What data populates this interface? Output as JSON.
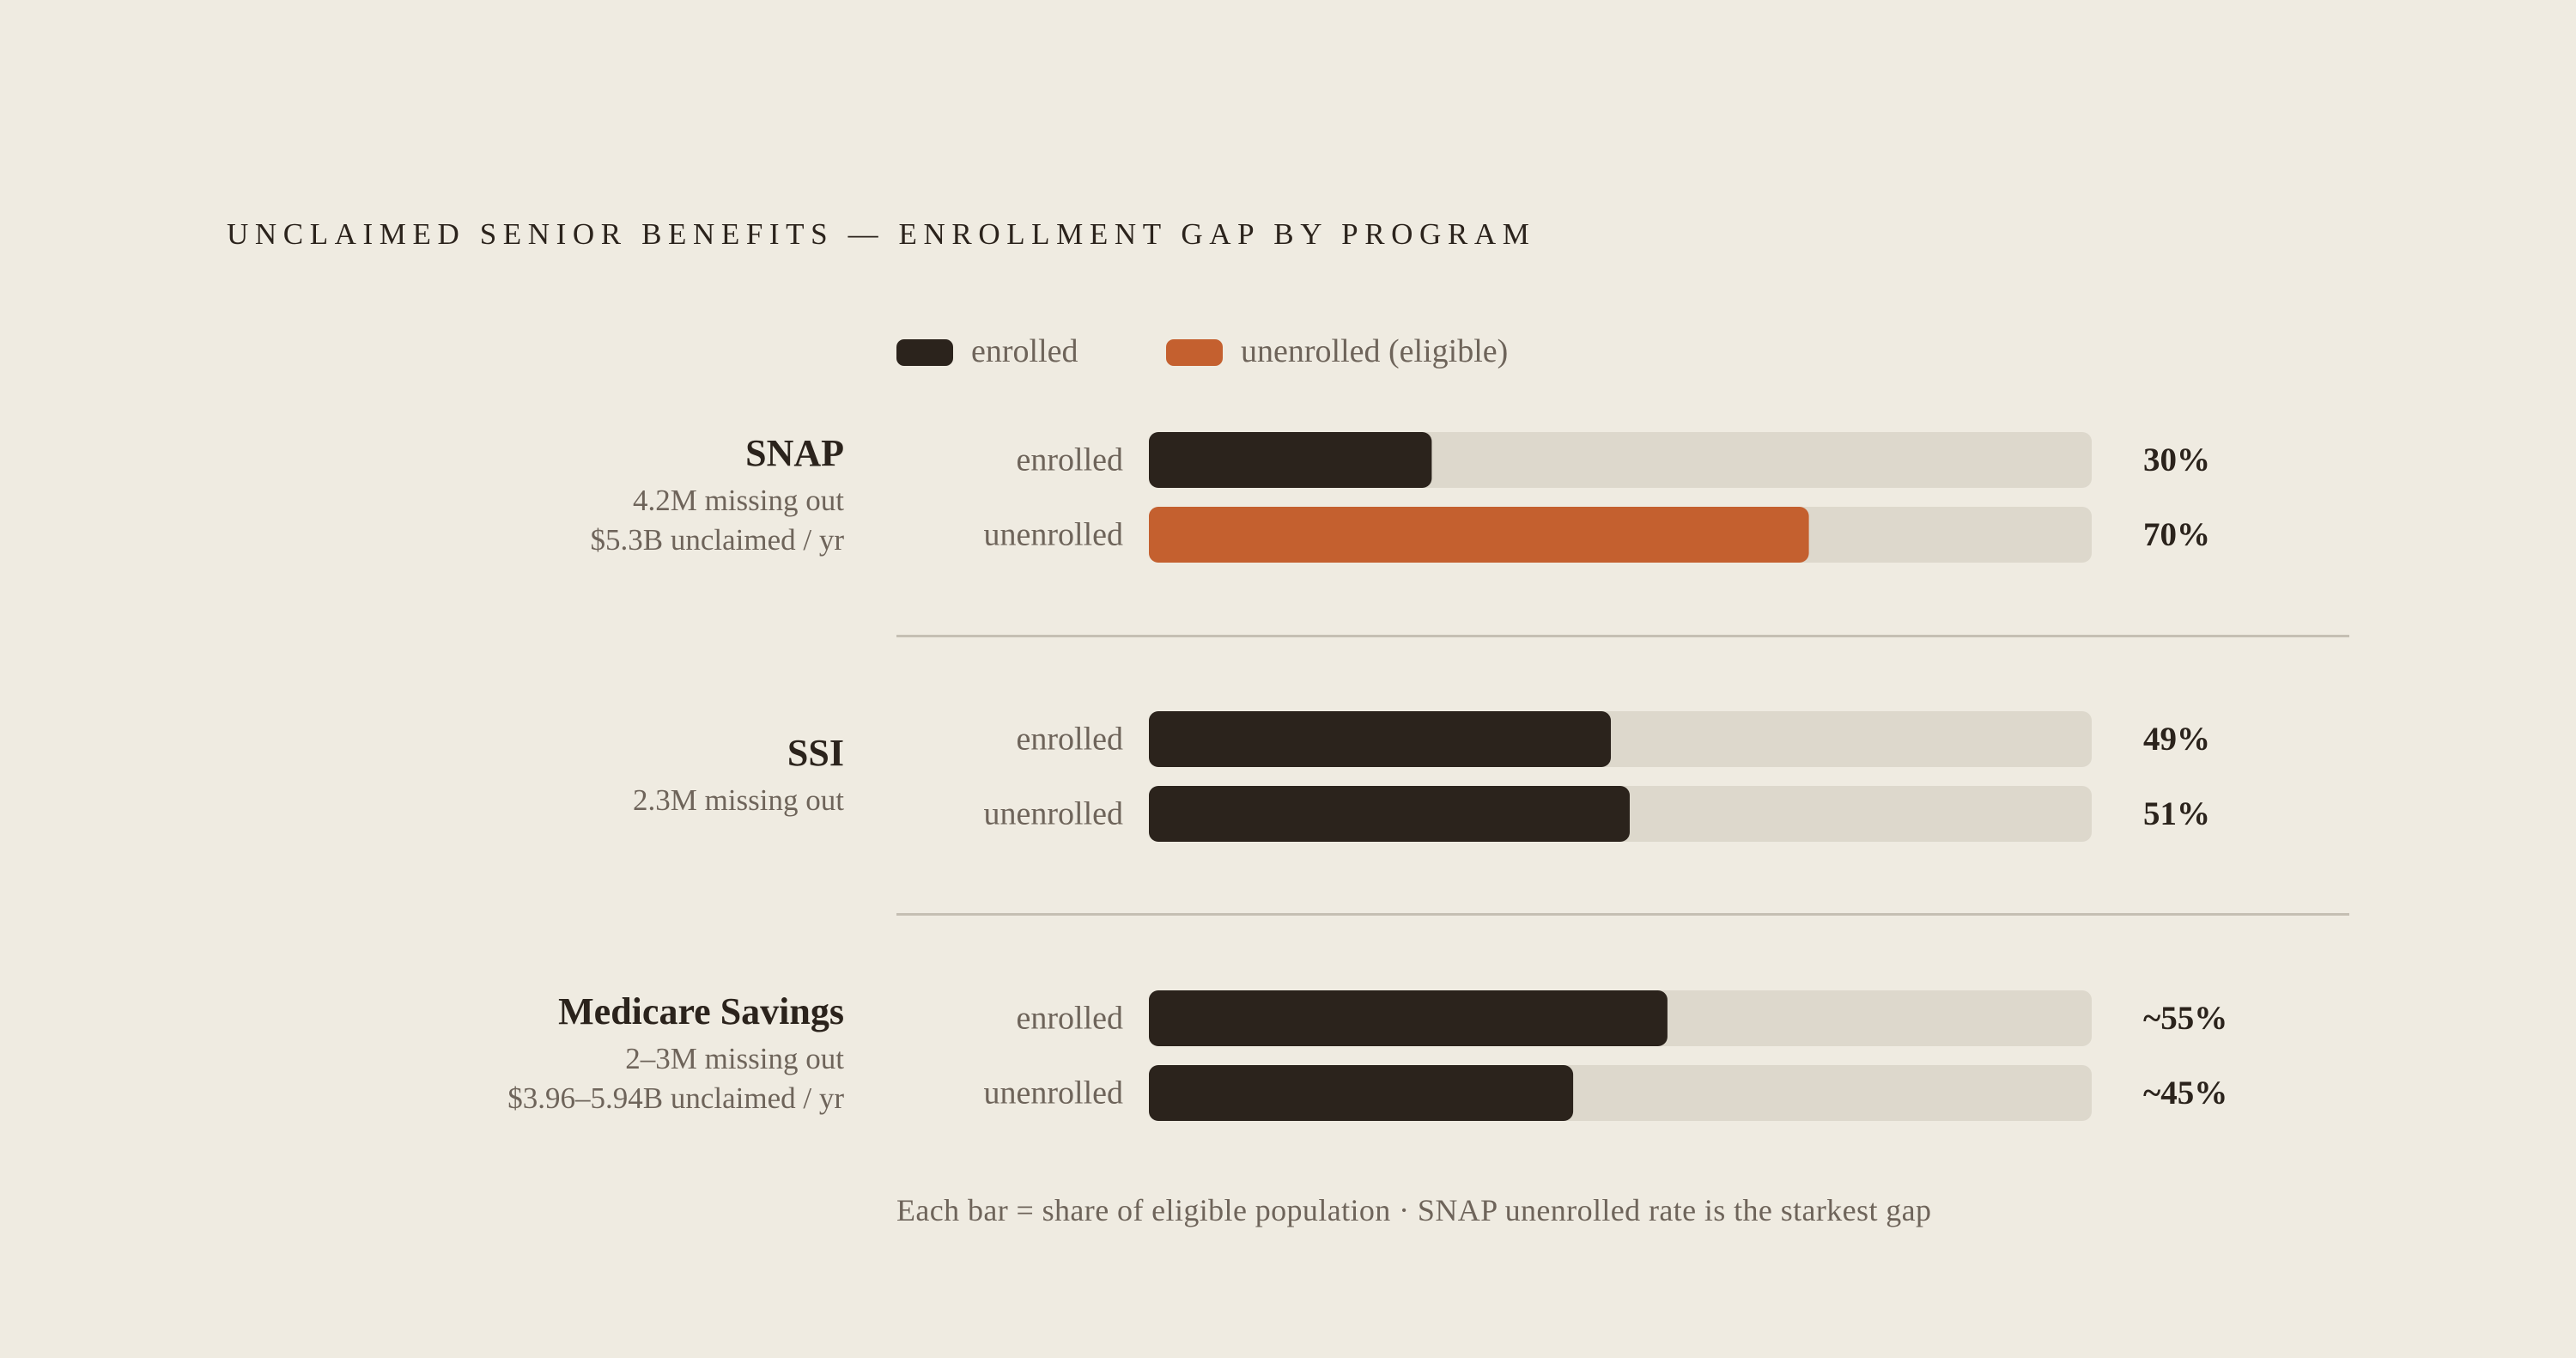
{
  "title": "UNCLAIMED SENIOR BENEFITS — ENROLLMENT GAP BY PROGRAM",
  "footnote": "Each bar = share of eligible population · SNAP unenrolled rate is the starkest gap",
  "legend": {
    "enrolled": {
      "label": "enrolled",
      "color": "#2b231c"
    },
    "unenrolled": {
      "label": "unenrolled (eligible)",
      "color": "#c4602f"
    }
  },
  "colors": {
    "background": "#efebe1",
    "track": "#ddd8cc",
    "enrolled": "#2b231c",
    "unenrolled_highlight": "#c4602f"
  },
  "chart_data": {
    "type": "bar",
    "orientation": "horizontal",
    "title": "UNCLAIMED SENIOR BENEFITS — ENROLLMENT GAP BY PROGRAM",
    "xlim": [
      0,
      100
    ],
    "unit": "%",
    "grid": false,
    "legend_position": "top-left",
    "groups": [
      {
        "name": "SNAP",
        "details": [
          "4.2M missing out",
          "$5.3B unclaimed / yr"
        ],
        "bars": [
          {
            "label": "enrolled",
            "value": 30,
            "value_label": "30%",
            "color": "#2b231c"
          },
          {
            "label": "unenrolled",
            "value": 70,
            "value_label": "70%",
            "color": "#c4602f"
          }
        ]
      },
      {
        "name": "SSI",
        "details": [
          "2.3M missing out"
        ],
        "bars": [
          {
            "label": "enrolled",
            "value": 49,
            "value_label": "49%",
            "color": "#2b231c"
          },
          {
            "label": "unenrolled",
            "value": 51,
            "value_label": "51%",
            "color": "#2b231c"
          }
        ]
      },
      {
        "name": "Medicare Savings",
        "details": [
          "2–3M missing out",
          "$3.96–5.94B unclaimed / yr"
        ],
        "bars": [
          {
            "label": "enrolled",
            "value": 55,
            "value_label": "~55%",
            "color": "#2b231c"
          },
          {
            "label": "unenrolled",
            "value": 45,
            "value_label": "~45%",
            "color": "#2b231c"
          }
        ]
      }
    ]
  }
}
